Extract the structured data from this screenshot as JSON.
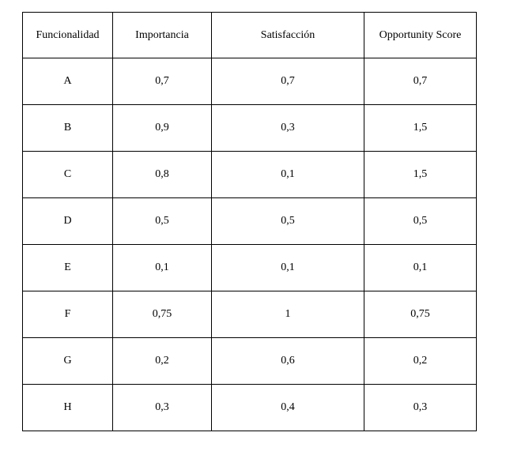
{
  "table": {
    "columns": [
      "Funcionalidad",
      "Importancia",
      "Satisfacción",
      "Opportunity Score"
    ],
    "rows": [
      [
        "A",
        "0,7",
        "0,7",
        "0,7"
      ],
      [
        "B",
        "0,9",
        "0,3",
        "1,5"
      ],
      [
        "C",
        "0,8",
        "0,1",
        "1,5"
      ],
      [
        "D",
        "0,5",
        "0,5",
        "0,5"
      ],
      [
        "E",
        "0,1",
        "0,1",
        "0,1"
      ],
      [
        "F",
        "0,75",
        "1",
        "0,75"
      ],
      [
        "G",
        "0,2",
        "0,6",
        "0,2"
      ],
      [
        "H",
        "0,3",
        "0,4",
        "0,3"
      ]
    ],
    "border_color": "#000000",
    "background_color": "#ffffff"
  }
}
